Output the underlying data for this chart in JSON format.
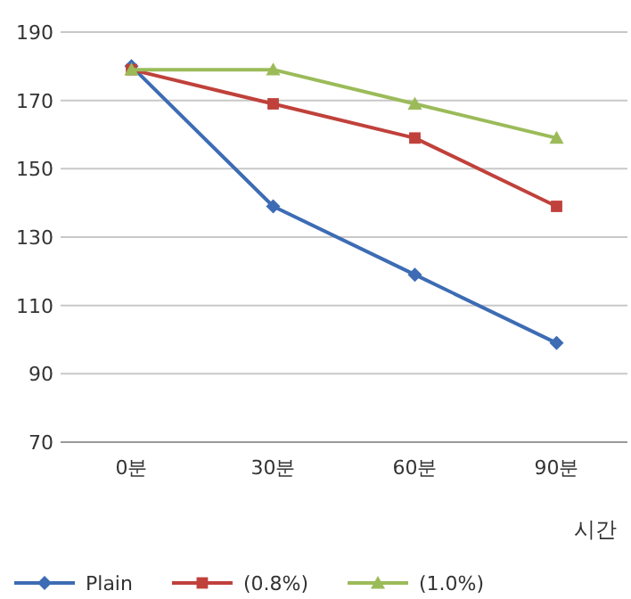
{
  "chart_data": {
    "type": "line",
    "xlabel": "시간",
    "categories": [
      "0분",
      "30분",
      "60분",
      "90분"
    ],
    "series": [
      {
        "name": "Plain",
        "color": "#3d6cb4",
        "marker": "diamond",
        "values": [
          180,
          139,
          119,
          99
        ]
      },
      {
        "name": "(0.8%)",
        "color": "#c0413b",
        "marker": "square",
        "values": [
          179,
          169,
          159,
          139
        ]
      },
      {
        "name": "(1.0%)",
        "color": "#9bbb59",
        "marker": "triangle",
        "values": [
          179,
          179,
          169,
          159
        ]
      }
    ],
    "ylim": [
      70,
      190
    ],
    "yticks": [
      70,
      90,
      110,
      130,
      150,
      170,
      190
    ],
    "grid": "y",
    "legend": "bottom",
    "line_style": "solid"
  }
}
